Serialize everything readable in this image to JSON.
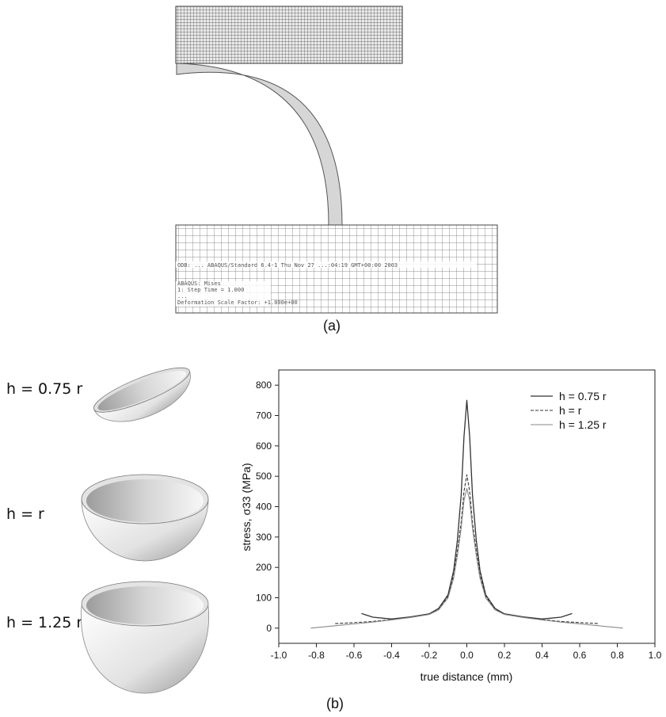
{
  "figure_a": {
    "caption": "(a)",
    "sim_lines": [
      "ODB: ...    ABAQUS/Standard 6.4-1    Thu Nov 27 ...:04:19 GMT+00:00 2003",
      "ABAQUS: Mises",
      "1:    Step Time =    1.000",
      "...",
      "Deformation Scale Factor: +1.000e+00"
    ]
  },
  "figure_b": {
    "caption": "(b)",
    "shell_labels": [
      "h = 0.75 r",
      "h = r",
      "h = 1.25 r"
    ]
  },
  "chart_data": {
    "type": "line",
    "title": "",
    "xlabel": "true distance (mm)",
    "ylabel": "stress, σ33 (MPa)",
    "xlim": [
      -1.0,
      1.0
    ],
    "ylim": [
      -50,
      850
    ],
    "xticks": [
      "-1.0",
      "-0.8",
      "-0.6",
      "-0.4",
      "-0.2",
      "0.0",
      "0.2",
      "0.4",
      "0.6",
      "0.8",
      "1.0"
    ],
    "yticks": [
      "0",
      "100",
      "200",
      "300",
      "400",
      "500",
      "600",
      "700",
      "800"
    ],
    "legend_position": "top-right",
    "grid": false,
    "series": [
      {
        "name": "h = 0.75 r",
        "style": "solid",
        "color": "#333333",
        "x": [
          -0.56,
          -0.5,
          -0.4,
          -0.3,
          -0.2,
          -0.15,
          -0.1,
          -0.07,
          -0.05,
          -0.03,
          -0.015,
          0.0,
          0.015,
          0.03,
          0.05,
          0.07,
          0.1,
          0.15,
          0.2,
          0.3,
          0.4,
          0.5,
          0.56
        ],
        "y": [
          48,
          36,
          30,
          37,
          47,
          65,
          110,
          190,
          290,
          440,
          630,
          750,
          630,
          440,
          290,
          190,
          110,
          65,
          47,
          37,
          30,
          36,
          48
        ]
      },
      {
        "name": "h = r",
        "style": "dashed",
        "color": "#333333",
        "x": [
          -0.7,
          -0.6,
          -0.5,
          -0.4,
          -0.3,
          -0.2,
          -0.15,
          -0.1,
          -0.07,
          -0.05,
          -0.03,
          -0.015,
          0.0,
          0.015,
          0.03,
          0.05,
          0.07,
          0.1,
          0.15,
          0.2,
          0.3,
          0.4,
          0.5,
          0.6,
          0.7
        ],
        "y": [
          15,
          18,
          22,
          28,
          36,
          46,
          62,
          105,
          175,
          255,
          350,
          450,
          505,
          450,
          350,
          255,
          175,
          105,
          62,
          46,
          36,
          28,
          22,
          18,
          15
        ]
      },
      {
        "name": "h = 1.25 r",
        "style": "solid-light",
        "color": "#8a8a8a",
        "x": [
          -0.83,
          -0.7,
          -0.6,
          -0.5,
          -0.4,
          -0.3,
          -0.2,
          -0.15,
          -0.1,
          -0.07,
          -0.05,
          -0.03,
          -0.015,
          0.0,
          0.015,
          0.03,
          0.05,
          0.07,
          0.1,
          0.15,
          0.2,
          0.3,
          0.4,
          0.5,
          0.6,
          0.7,
          0.83
        ],
        "y": [
          0,
          8,
          14,
          20,
          27,
          35,
          45,
          60,
          100,
          165,
          240,
          330,
          420,
          460,
          420,
          330,
          240,
          165,
          100,
          60,
          45,
          35,
          27,
          20,
          14,
          8,
          0
        ]
      }
    ]
  }
}
